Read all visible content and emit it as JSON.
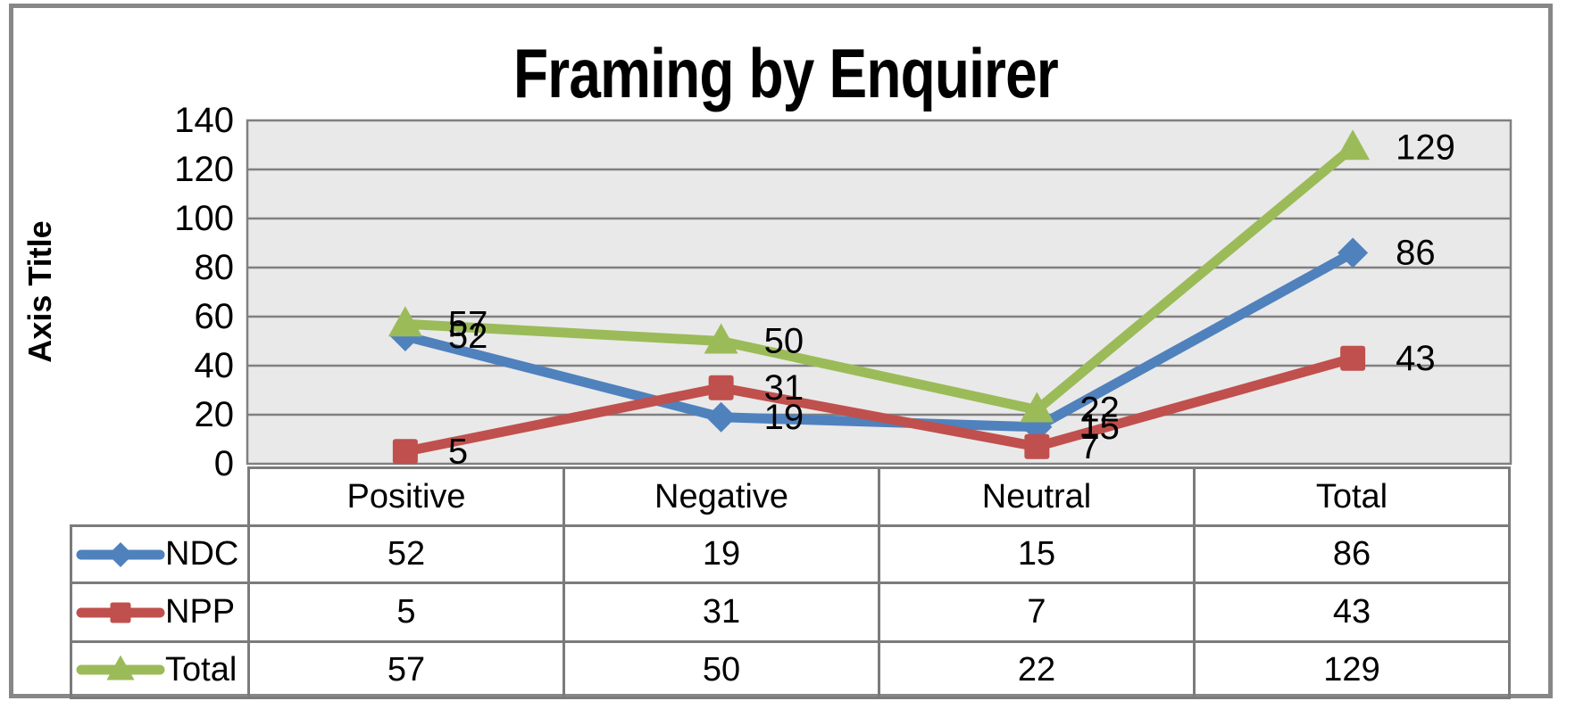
{
  "chart_data": {
    "type": "line",
    "title": "Framing by Enquirer",
    "axis_title_y": "Axis Title",
    "categories": [
      "Positive",
      "Negative",
      "Neutral",
      "Total"
    ],
    "series": [
      {
        "name": "NDC",
        "color": "#4F81BD",
        "marker": "diamond",
        "values": [
          52,
          19,
          15,
          86
        ]
      },
      {
        "name": "NPP",
        "color": "#C0504D",
        "marker": "square",
        "values": [
          5,
          31,
          7,
          43
        ]
      },
      {
        "name": "Total",
        "color": "#9BBB59",
        "marker": "triangle",
        "values": [
          57,
          50,
          22,
          129
        ]
      }
    ],
    "ylim": [
      0,
      140
    ],
    "yticks": [
      0,
      20,
      40,
      60,
      80,
      100,
      120,
      140
    ],
    "grid": true,
    "data_labels": true,
    "legend_position": "table-left",
    "colors": {
      "plot_bg": "#E9E9E9",
      "gridline": "#808080",
      "table_border": "#7B7B7B",
      "window_border": "#878787",
      "label_text": "#000000"
    }
  }
}
